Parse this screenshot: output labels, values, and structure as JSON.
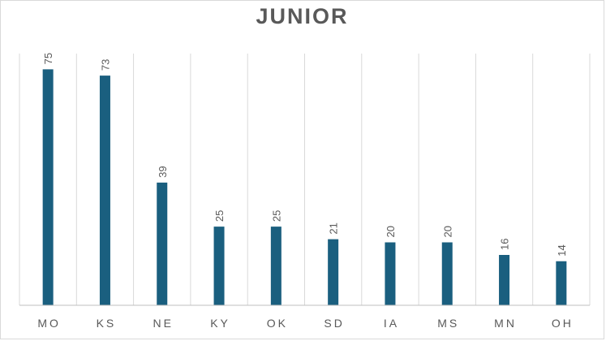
{
  "chart_data": {
    "type": "bar",
    "title": "JUNIOR",
    "categories": [
      "MO",
      "KS",
      "NE",
      "KY",
      "OK",
      "SD",
      "IA",
      "MS",
      "MN",
      "OH"
    ],
    "values": [
      75,
      73,
      39,
      25,
      25,
      21,
      20,
      20,
      16,
      14
    ],
    "xlabel": "",
    "ylabel": "",
    "ylim": [
      0,
      80
    ],
    "grid": "vertical-category-dividers",
    "legend": "none",
    "data_labels": "rotated-above-bars",
    "bar_color": "#1a5f7f"
  }
}
